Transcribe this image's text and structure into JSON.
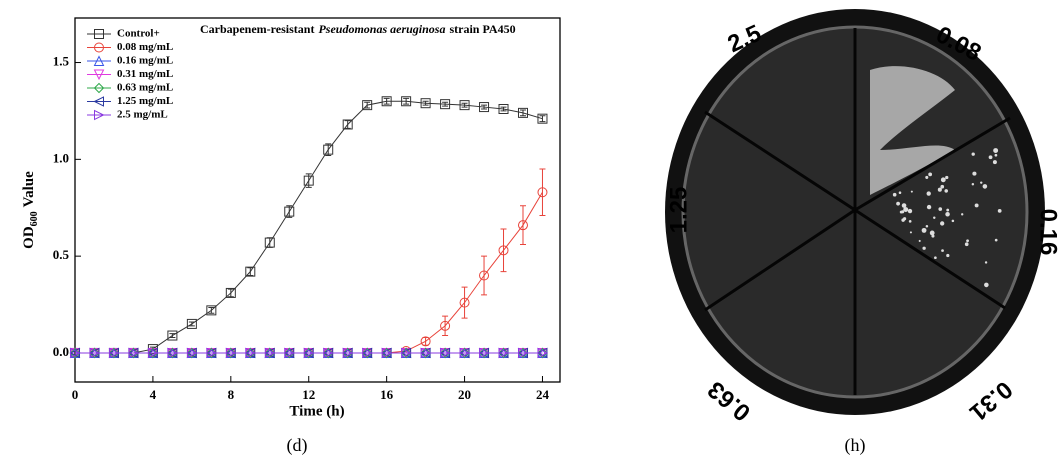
{
  "chart_data": {
    "type": "line",
    "title": [
      "Carbapenem-resistant",
      "Pseudomonas aeruginosa",
      "strain PA450"
    ],
    "xlabel": "Time (h)",
    "ylabel": [
      "OD",
      "600",
      "Value"
    ],
    "x": [
      0,
      1,
      2,
      3,
      4,
      5,
      6,
      7,
      8,
      9,
      10,
      11,
      12,
      13,
      14,
      15,
      16,
      17,
      18,
      19,
      20,
      21,
      22,
      23,
      24
    ],
    "xlim": [
      0,
      24.9
    ],
    "xticks": [
      0,
      4,
      8,
      12,
      16,
      20,
      24
    ],
    "ylim": [
      -0.15,
      1.73
    ],
    "yticks": [
      {
        "value": 0,
        "label": "0.0"
      },
      0.5,
      {
        "value": 1,
        "label": "1.0"
      },
      1.5
    ],
    "legend": "upper left",
    "series": [
      {
        "name": "Control+",
        "color": "#333333",
        "marker": "square",
        "values": [
          0,
          0,
          0,
          0,
          0.02,
          0.09,
          0.15,
          0.22,
          0.31,
          0.42,
          0.57,
          0.73,
          0.89,
          1.05,
          1.18,
          1.28,
          1.3,
          1.3,
          1.29,
          1.285,
          1.28,
          1.27,
          1.26,
          1.24,
          1.21
        ],
        "errors": [
          0,
          0,
          0,
          0,
          0.01,
          0.01,
          0.01,
          0.015,
          0.02,
          0.02,
          0.025,
          0.03,
          0.035,
          0.03,
          0.02,
          0.015,
          0.015,
          0.015,
          0.01,
          0.01,
          0.01,
          0.01,
          0.01,
          0.015,
          0.015
        ]
      },
      {
        "name": "0.08 mg/mL",
        "color": "#e8433a",
        "marker": "circle",
        "values": [
          0,
          0,
          0,
          0,
          0,
          0,
          0,
          0,
          0,
          0,
          0,
          0,
          0,
          0,
          0,
          0,
          0,
          0.01,
          0.06,
          0.14,
          0.26,
          0.4,
          0.53,
          0.66,
          0.83
        ],
        "errors": [
          0,
          0,
          0,
          0,
          0,
          0,
          0,
          0,
          0,
          0,
          0,
          0,
          0,
          0,
          0,
          0,
          0,
          0.01,
          0.02,
          0.05,
          0.08,
          0.1,
          0.11,
          0.1,
          0.12
        ]
      },
      {
        "name": "0.16 mg/mL",
        "color": "#3a56e8",
        "marker": "triangle-up",
        "values": [
          0,
          0,
          0,
          0,
          0,
          0,
          0,
          0,
          0,
          0,
          0,
          0,
          0,
          0,
          0,
          0,
          0,
          0,
          0,
          0,
          0,
          0,
          0,
          0,
          0
        ]
      },
      {
        "name": "0.31 mg/mL",
        "color": "#e03ae0",
        "marker": "triangle-down",
        "values": [
          0,
          0,
          0,
          0,
          0,
          0,
          0,
          0,
          0,
          0,
          0,
          0,
          0,
          0,
          0,
          0,
          0,
          0,
          0,
          0,
          0,
          0,
          0,
          0,
          0
        ]
      },
      {
        "name": "0.63 mg/mL",
        "color": "#2fa84a",
        "marker": "diamond",
        "values": [
          0,
          0,
          0,
          0,
          0,
          0,
          0,
          0,
          0,
          0,
          0,
          0,
          0,
          0,
          0,
          0,
          0,
          0,
          0,
          0,
          0,
          0,
          0,
          0,
          0
        ]
      },
      {
        "name": "1.25 mg/mL",
        "color": "#2b3aa0",
        "marker": "triangle-left",
        "values": [
          0,
          0,
          0,
          0,
          0,
          0,
          0,
          0,
          0,
          0,
          0,
          0,
          0,
          0,
          0,
          0,
          0,
          0,
          0,
          0,
          0,
          0,
          0,
          0,
          0
        ]
      },
      {
        "name": "2.5 mg/mL",
        "color": "#8a3ae0",
        "marker": "triangle-right",
        "values": [
          0,
          0,
          0,
          0,
          0,
          0,
          0,
          0,
          0,
          0,
          0,
          0,
          0,
          0,
          0,
          0,
          0,
          0,
          0,
          0,
          0,
          0,
          0,
          0,
          0
        ]
      }
    ]
  },
  "plate": {
    "labels": [
      "2.5",
      "0.08",
      "0.16",
      "0.31",
      "0.63",
      "1.25"
    ]
  },
  "panel_labels": [
    "(d)",
    "(h)"
  ]
}
